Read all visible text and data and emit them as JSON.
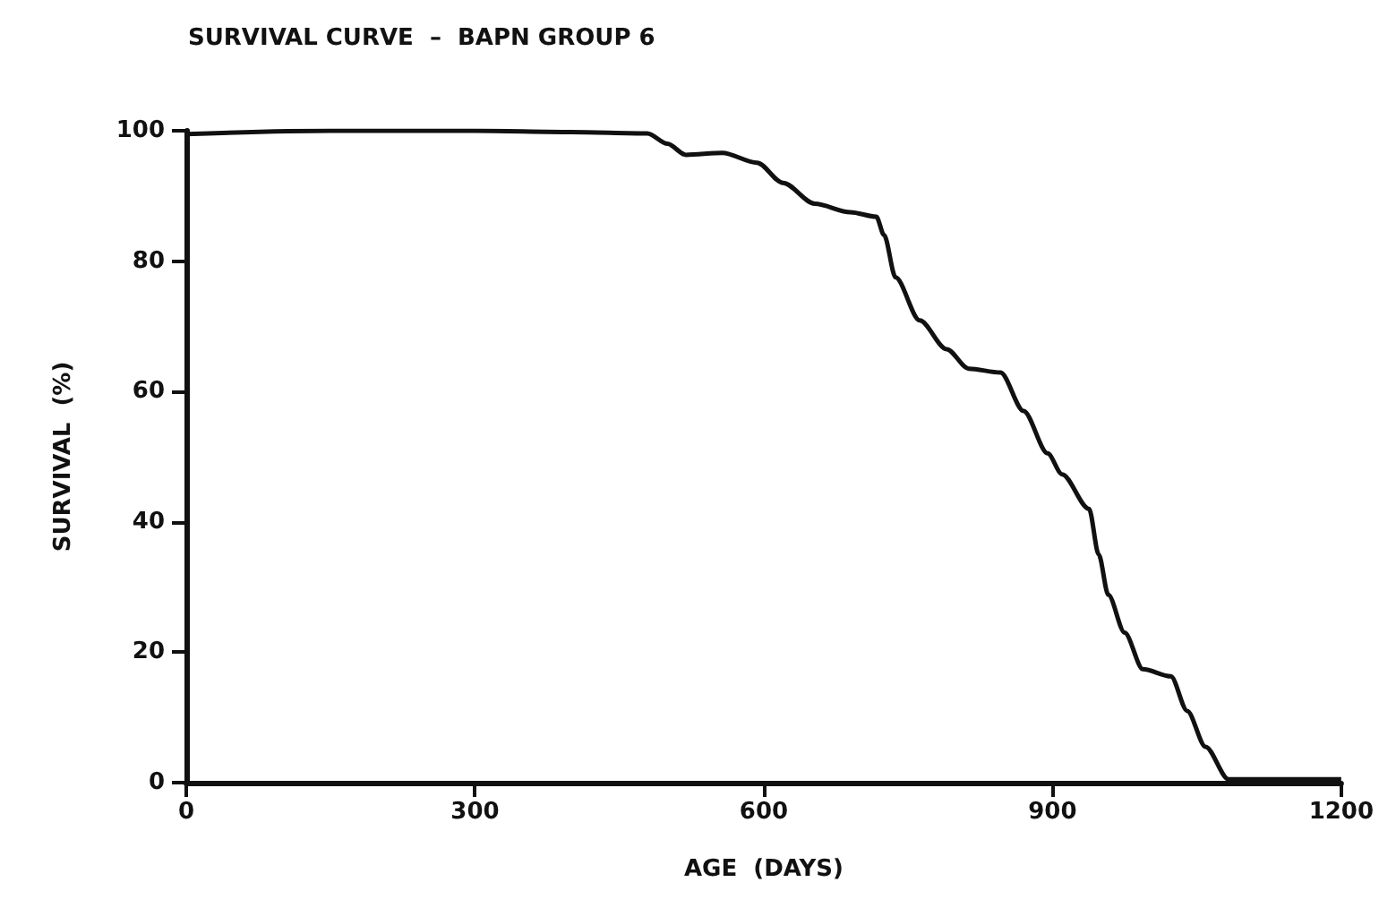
{
  "chart_data": {
    "type": "line",
    "title": "SURVIVAL CURVE  –  BAPN GROUP 6",
    "xlabel": "AGE  (DAYS)",
    "ylabel": "SURVIVAL  (%)",
    "x": [
      0,
      150,
      300,
      400,
      479,
      500,
      519,
      557,
      593,
      620,
      653,
      690,
      717,
      725,
      737,
      762,
      790,
      813,
      846,
      870,
      895,
      910,
      938,
      948,
      958,
      975,
      994,
      1023,
      1040,
      1059,
      1083,
      1200
    ],
    "series": [
      {
        "color": "#111111",
        "values": [
          99.5,
          100,
          100,
          99.8,
          99.6,
          98,
          96.3,
          96.6,
          95.1,
          92,
          88.8,
          87.5,
          86.8,
          84,
          77.5,
          70.9,
          66.5,
          63.5,
          62.9,
          57,
          50.5,
          47.3,
          42,
          35,
          28.8,
          23,
          17.4,
          16.3,
          11,
          5.5,
          0.5,
          0.5
        ]
      }
    ],
    "xlim": [
      0,
      1200
    ],
    "xticks": [
      0,
      300,
      600,
      900,
      1200
    ],
    "ylim": [
      0,
      100
    ],
    "yticks": [
      0,
      20,
      40,
      60,
      80,
      100
    ],
    "grid": false,
    "marker": "none",
    "line_style": "solid"
  }
}
